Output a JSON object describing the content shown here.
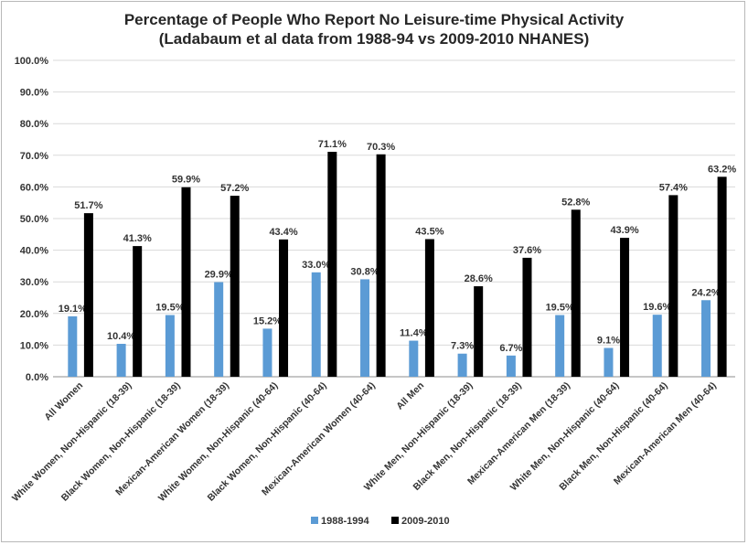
{
  "chart_data": {
    "type": "bar",
    "title": "Percentage of People Who Report No Leisure-time Physical Activity",
    "subtitle": "(Ladabaum et al data from 1988-94 vs 2009-2010 NHANES)",
    "xlabel": "",
    "ylabel": "",
    "ylim": [
      0,
      100
    ],
    "yticks": [
      "0.0%",
      "10.0%",
      "20.0%",
      "30.0%",
      "40.0%",
      "50.0%",
      "60.0%",
      "70.0%",
      "80.0%",
      "90.0%",
      "100.0%"
    ],
    "grid": true,
    "legend_position": "bottom",
    "categories": [
      "All Women",
      "White Women, Non-Hispanic (18-39)",
      "Black Women, Non-Hispanic (18-39)",
      "Mexican-American Women (18-39)",
      "White Women, Non-Hispanic (40-64)",
      "Black Women, Non-Hispanic (40-64)",
      "Mexican-American Women (40-64)",
      "All Men",
      "White Men, Non-Hispanic (18-39)",
      "Black Men, Non-Hispanic (18-39)",
      "Mexican-American Men (18-39)",
      "White Men, Non-Hispanic (40-64)",
      "Black Men, Non-Hispanic (40-64)",
      "Mexican-American Men (40-64)"
    ],
    "series": [
      {
        "name": "1988-1994",
        "color": "#5b9bd5",
        "values": [
          19.1,
          10.4,
          19.5,
          29.9,
          15.2,
          33.0,
          30.8,
          11.4,
          7.3,
          6.7,
          19.5,
          9.1,
          19.6,
          24.2
        ],
        "labels": [
          "19.1%",
          "10.4%",
          "19.5%",
          "29.9%",
          "15.2%",
          "33.0%",
          "30.8%",
          "11.4%",
          "7.3%",
          "6.7%",
          "19.5%",
          "9.1%",
          "19.6%",
          "24.2%"
        ]
      },
      {
        "name": "2009-2010",
        "color": "#000000",
        "values": [
          51.7,
          41.3,
          59.9,
          57.2,
          43.4,
          71.1,
          70.3,
          43.5,
          28.6,
          37.6,
          52.8,
          43.9,
          57.4,
          63.2
        ],
        "labels": [
          "51.7%",
          "41.3%",
          "59.9%",
          "57.2%",
          "43.4%",
          "71.1%",
          "70.3%",
          "43.5%",
          "28.6%",
          "37.6%",
          "52.8%",
          "43.9%",
          "57.4%",
          "63.2%"
        ]
      }
    ]
  }
}
